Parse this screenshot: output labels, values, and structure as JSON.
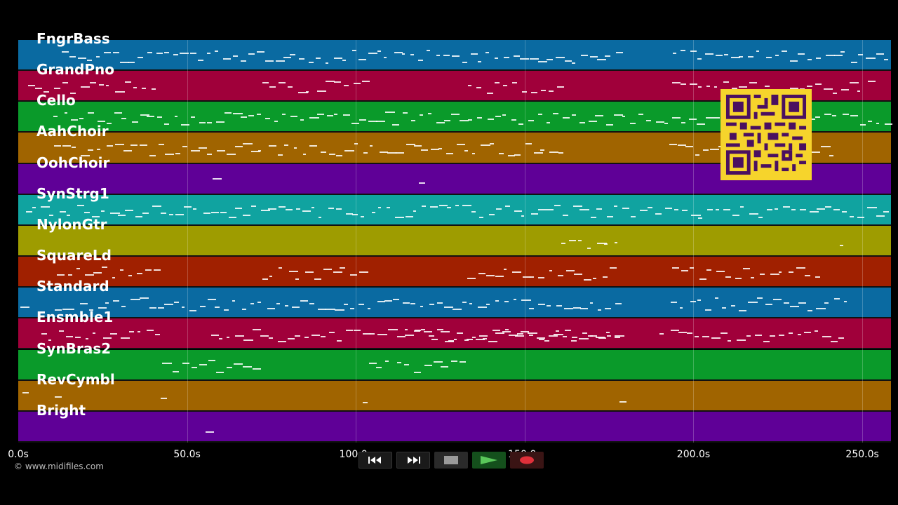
{
  "tracks": [
    {
      "name": "FngrBass",
      "color": "#0a6aa1"
    },
    {
      "name": "GrandPno",
      "color": "#a0003a"
    },
    {
      "name": "Cello",
      "color": "#0a9a2a"
    },
    {
      "name": "AahChoir",
      "color": "#a06400"
    },
    {
      "name": "OohChoir",
      "color": "#5f0097"
    },
    {
      "name": "SynStrg1",
      "color": "#10a3a0"
    },
    {
      "name": "NylonGtr",
      "color": "#9e9c00"
    },
    {
      "name": "SquareLd",
      "color": "#a02000"
    },
    {
      "name": "Standard",
      "color": "#0a6aa1"
    },
    {
      "name": "Ensmble1",
      "color": "#a0003a"
    },
    {
      "name": "SynBras2",
      "color": "#0a9a2a"
    },
    {
      "name": "RevCymbl",
      "color": "#a06400"
    },
    {
      "name": "Bright",
      "color": "#5f0097"
    }
  ],
  "time_axis": {
    "ticks": [
      "0.0s",
      "50.0s",
      "100.0s",
      "150.0s",
      "200.0s",
      "250.0s"
    ],
    "tick_values": [
      0,
      50,
      100,
      150,
      200,
      250
    ],
    "max_seconds": 258.5
  },
  "copyright": "© www.midifiles.com",
  "transport": {
    "buttons": [
      "rewind-icon",
      "fast-forward-icon",
      "stop-icon",
      "play-icon",
      "record-icon"
    ]
  }
}
